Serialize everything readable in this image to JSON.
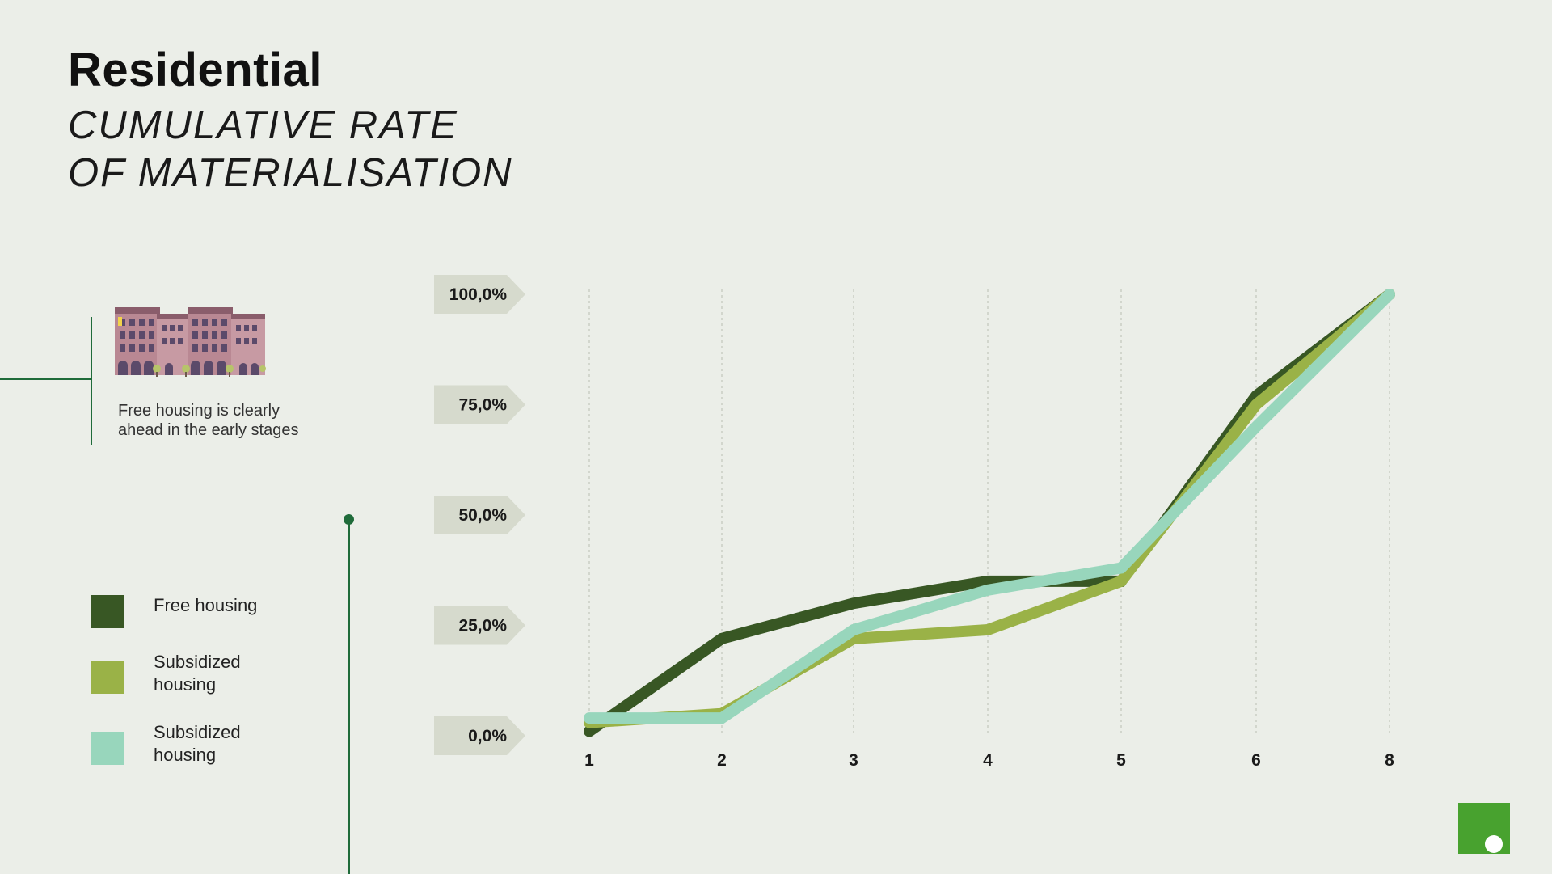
{
  "page": {
    "title": "Residential",
    "subtitle_lines": [
      "CUMULATIVE RATE",
      "OF MATERIALISATION"
    ]
  },
  "note": {
    "text": "Free housing is clearly ahead in the early stages"
  },
  "legend": {
    "items": [
      {
        "label": "Free housing",
        "color": "#385724"
      },
      {
        "label": "Subsidized housing",
        "color": "#9ab247"
      },
      {
        "label": "Subsidized housing",
        "color": "#98d6bc"
      }
    ]
  },
  "icons": {
    "buildings": "building-illustration-icon",
    "logo": "brand-logo-icon"
  },
  "colors": {
    "background": "#ebeee8",
    "accent_line": "#1f6b3a",
    "tag_fill": "#d6dacd",
    "logo": "#48a22f"
  },
  "chart_data": {
    "type": "line",
    "categories": [
      "1",
      "2",
      "3",
      "4",
      "5",
      "6",
      "8"
    ],
    "y_tick_labels": [
      "100,0%",
      "75,0%",
      "50,0%",
      "25,0%",
      "0,0%"
    ],
    "y_ticks": [
      100,
      75,
      50,
      25,
      0
    ],
    "ylim": [
      0,
      100
    ],
    "grid": "vertical dotted",
    "series": [
      {
        "name": "Free housing",
        "color": "#385724",
        "values": [
          1,
          22,
          30,
          35,
          35,
          77,
          100
        ]
      },
      {
        "name": "Subsidized housing",
        "color": "#9ab247",
        "values": [
          3,
          5,
          22,
          24,
          35,
          75,
          100
        ]
      },
      {
        "name": "Subsidized housing",
        "color": "#98d6bc",
        "values": [
          4,
          4,
          24,
          33,
          38,
          70,
          100
        ]
      }
    ],
    "title": "",
    "xlabel": "",
    "ylabel": ""
  }
}
